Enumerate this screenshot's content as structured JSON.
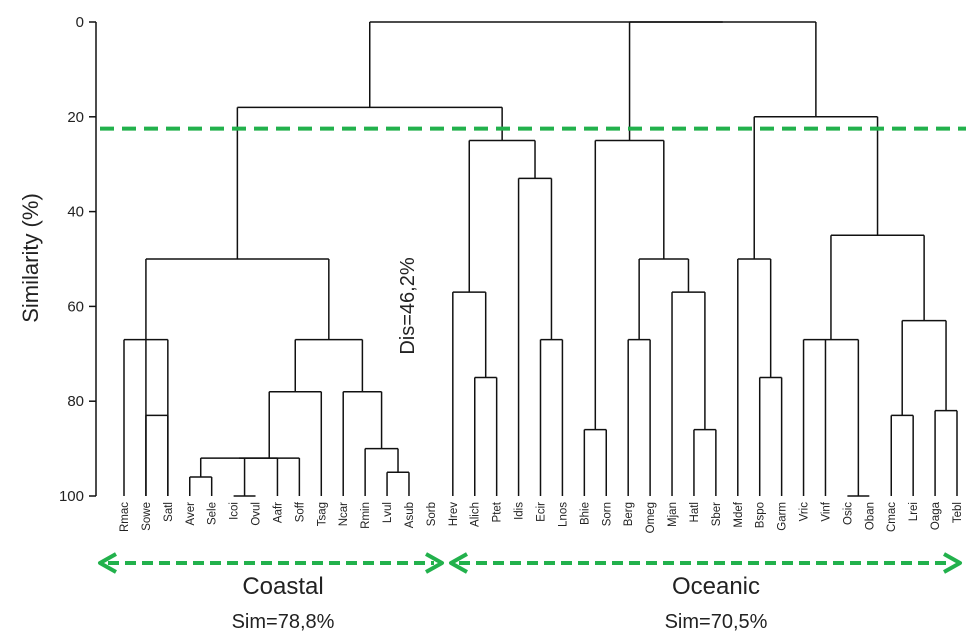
{
  "chart_data": {
    "type": "dendrogram",
    "ylabel": "Similarity (%)",
    "ylim": [
      0,
      100
    ],
    "yticks": [
      0,
      20,
      40,
      60,
      80,
      100
    ],
    "leaves": [
      "Rmac",
      "Sowe",
      "Satl",
      "Aver",
      "Sele",
      "Icoi",
      "Ovul",
      "Aafr",
      "Soff",
      "Tsag",
      "Ncar",
      "Rmin",
      "Lvul",
      "Asub",
      "Sorb",
      "Hrev",
      "Alich",
      "Ptet",
      "Idis",
      "Ecir",
      "Lnos",
      "Bhie",
      "Sorn",
      "Berg",
      "Omeg",
      "Mjan",
      "Hatl",
      "Sber",
      "Mdef",
      "Bspo",
      "Garm",
      "Vric",
      "Vinf",
      "Osic",
      "Oban",
      "Cmac",
      "Lrei",
      "Oaga",
      "Tebl"
    ],
    "merges": [
      {
        "id": "c0",
        "children": [
          "L0",
          "L1",
          "L2"
        ],
        "similarity": 67
      },
      {
        "id": "c1",
        "children": [
          "L1",
          "L2"
        ],
        "similarity": 83
      },
      {
        "id": "c2",
        "children": [
          "L3",
          "L4"
        ],
        "similarity": 96
      },
      {
        "id": "c3",
        "children": [
          "L5",
          "L6"
        ],
        "similarity": 100
      },
      {
        "id": "c4",
        "children": [
          "c2",
          "c3",
          "L7"
        ],
        "similarity": 92
      },
      {
        "id": "c5",
        "children": [
          "c4",
          "L8"
        ],
        "similarity": 92
      },
      {
        "id": "c6",
        "children": [
          "c5",
          "L9"
        ],
        "similarity": 78
      },
      {
        "id": "c7",
        "children": [
          "L12",
          "L13"
        ],
        "similarity": 95
      },
      {
        "id": "c8",
        "children": [
          "L11",
          "c7"
        ],
        "similarity": 90
      },
      {
        "id": "c9",
        "children": [
          "L10",
          "c8"
        ],
        "similarity": 78
      },
      {
        "id": "c10",
        "children": [
          "c6",
          "c9"
        ],
        "similarity": 67
      },
      {
        "id": "c11",
        "children": [
          "c0",
          "c10"
        ],
        "similarity": 50
      },
      {
        "id": "c12",
        "children": [
          "L16",
          "L17"
        ],
        "similarity": 75
      },
      {
        "id": "c13",
        "children": [
          "L15",
          "c12"
        ],
        "similarity": 57
      },
      {
        "id": "c14",
        "children": [
          "L19",
          "L20"
        ],
        "similarity": 67
      },
      {
        "id": "c15",
        "children": [
          "L18",
          "c14"
        ],
        "similarity": 33
      },
      {
        "id": "c16",
        "children": [
          "c13",
          "c15"
        ],
        "similarity": 25
      },
      {
        "id": "c17",
        "children": [
          "c11",
          "c16"
        ],
        "similarity": 18
      },
      {
        "id": "c18",
        "children": [
          "L21",
          "L22"
        ],
        "similarity": 86
      },
      {
        "id": "c19",
        "children": [
          "L23",
          "L24"
        ],
        "similarity": 67
      },
      {
        "id": "c20",
        "children": [
          "L26",
          "L27"
        ],
        "similarity": 86
      },
      {
        "id": "c21",
        "children": [
          "L25",
          "c20"
        ],
        "similarity": 57
      },
      {
        "id": "c22",
        "children": [
          "c19",
          "c21"
        ],
        "similarity": 50
      },
      {
        "id": "c23",
        "children": [
          "c18",
          "c22"
        ],
        "similarity": 25
      },
      {
        "id": "c24",
        "children": [
          "L29",
          "L30"
        ],
        "similarity": 75
      },
      {
        "id": "c25",
        "children": [
          "L28",
          "c24"
        ],
        "similarity": 50
      },
      {
        "id": "c26",
        "children": [
          "L33",
          "L34"
        ],
        "similarity": 100
      },
      {
        "id": "c27",
        "children": [
          "L31",
          "L32",
          "c26"
        ],
        "similarity": 67
      },
      {
        "id": "c28",
        "children": [
          "L35",
          "L36"
        ],
        "similarity": 83
      },
      {
        "id": "c29",
        "children": [
          "L37",
          "L38"
        ],
        "similarity": 82
      },
      {
        "id": "c30",
        "children": [
          "c28",
          "c29"
        ],
        "similarity": 63
      },
      {
        "id": "c31",
        "children": [
          "c27",
          "c30"
        ],
        "similarity": 45
      },
      {
        "id": "c32",
        "children": [
          "c25",
          "c31"
        ],
        "similarity": 20
      },
      {
        "id": "c33",
        "children": [
          "c23",
          "c32"
        ],
        "similarity": 0
      },
      {
        "id": "c34",
        "children": [
          "c17",
          "c33"
        ],
        "similarity": 0
      }
    ],
    "cutoff_line": {
      "similarity": 22.5,
      "color": "#22b14c",
      "style": "dashed"
    },
    "annotations": [
      {
        "text": "Dis=46,2%"
      }
    ],
    "groups": [
      {
        "name": "Coastal",
        "sim_label": "Sim=78,8%",
        "from_leaf": 0,
        "to_leaf": 14
      },
      {
        "name": "Oceanic",
        "sim_label": "Sim=70,5%",
        "from_leaf": 15,
        "to_leaf": 38
      }
    ],
    "colors": {
      "tree": "#111111",
      "cutoff": "#22b14c",
      "arrows": "#22b14c"
    }
  }
}
